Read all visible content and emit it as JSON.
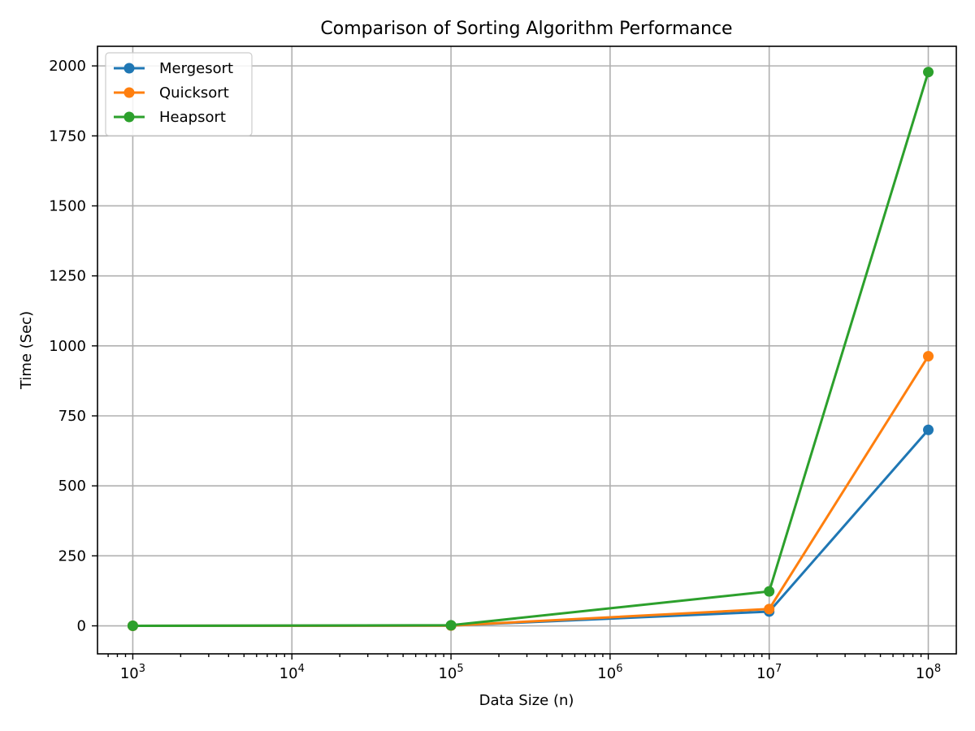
{
  "chart_data": {
    "type": "line",
    "title": "Comparison of Sorting Algorithm Performance",
    "xlabel": "Data Size (n)",
    "ylabel": "Time (Sec)",
    "xscale": "log",
    "x": [
      1000,
      100000,
      10000000,
      100000000
    ],
    "xlim": [
      600,
      150000000
    ],
    "ylim": [
      -100,
      2070
    ],
    "xticks": [
      1000,
      10000,
      100000,
      1000000,
      10000000,
      100000000
    ],
    "xtick_labels": [
      {
        "base": "10",
        "exp": "3"
      },
      {
        "base": "10",
        "exp": "4"
      },
      {
        "base": "10",
        "exp": "5"
      },
      {
        "base": "10",
        "exp": "6"
      },
      {
        "base": "10",
        "exp": "7"
      },
      {
        "base": "10",
        "exp": "8"
      }
    ],
    "yticks": [
      0,
      250,
      500,
      750,
      1000,
      1250,
      1500,
      1750,
      2000
    ],
    "ytick_labels": [
      "0",
      "250",
      "500",
      "750",
      "1000",
      "1250",
      "1500",
      "1750",
      "2000"
    ],
    "grid": true,
    "legend_position": "top-left",
    "series": [
      {
        "name": "Mergesort",
        "color": "#1f77b4",
        "values": [
          0.1,
          1,
          51,
          700
        ]
      },
      {
        "name": "Quicksort",
        "color": "#ff7f0e",
        "values": [
          0.1,
          1,
          60,
          963
        ]
      },
      {
        "name": "Heapsort",
        "color": "#2ca02c",
        "values": [
          0.2,
          2,
          123,
          1978
        ]
      }
    ]
  }
}
